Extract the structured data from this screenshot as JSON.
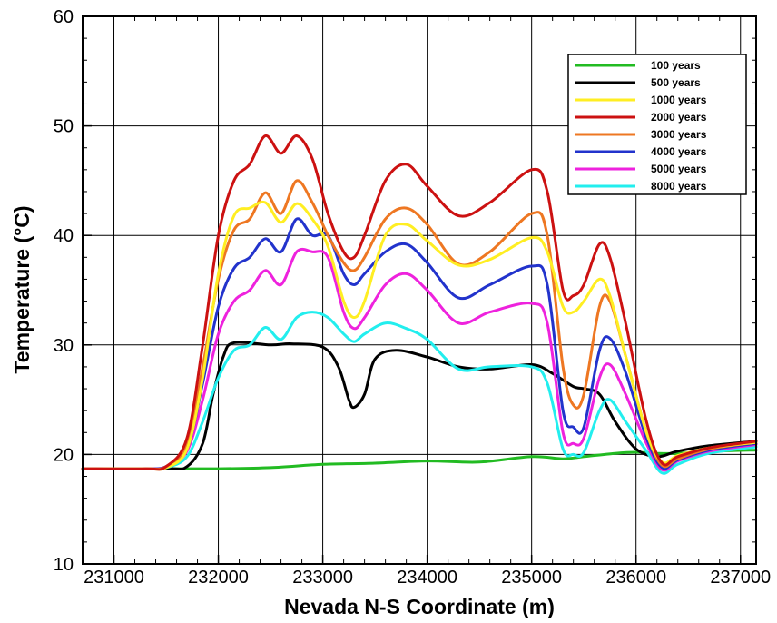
{
  "chart_data": {
    "type": "line",
    "xlabel": "Nevada N-S Coordinate (m)",
    "ylabel": "Temperature (°C)",
    "xlim": [
      230700,
      237150
    ],
    "ylim": [
      10,
      60
    ],
    "x_ticks": [
      231000,
      232000,
      233000,
      234000,
      235000,
      236000,
      237000
    ],
    "y_ticks": [
      10,
      20,
      30,
      40,
      50,
      60
    ],
    "grid": true,
    "legend_position": "top-right",
    "series": [
      {
        "name": "100 years",
        "color": "#22bb22",
        "x": [
          230700,
          231500,
          232000,
          232500,
          233000,
          233500,
          234000,
          234500,
          235000,
          235300,
          235500,
          235800,
          236000,
          236200,
          236400,
          236800,
          237150
        ],
        "y": [
          18.7,
          18.7,
          18.7,
          18.8,
          19.1,
          19.2,
          19.4,
          19.3,
          19.8,
          19.6,
          19.8,
          20.1,
          20.2,
          20.1,
          20.1,
          20.3,
          20.4
        ]
      },
      {
        "name": "500 years",
        "color": "#000000",
        "x": [
          230700,
          231500,
          231700,
          231850,
          231950,
          232050,
          232150,
          232500,
          232700,
          233000,
          233150,
          233250,
          233300,
          233400,
          233500,
          233700,
          234000,
          234300,
          234600,
          235000,
          235200,
          235400,
          235500,
          235650,
          235800,
          236000,
          236200,
          236400,
          236700,
          237150
        ],
        "y": [
          18.7,
          18.7,
          18.9,
          21.0,
          25.5,
          29.0,
          30.2,
          30.0,
          30.1,
          29.8,
          28.0,
          25.0,
          24.3,
          25.5,
          28.7,
          29.5,
          28.9,
          28.0,
          27.8,
          28.2,
          27.4,
          26.2,
          26.0,
          25.5,
          23.0,
          20.5,
          19.8,
          20.3,
          20.8,
          21.2
        ]
      },
      {
        "name": "1000 years",
        "color": "#ffee22",
        "x": [
          230700,
          231300,
          231500,
          231700,
          231850,
          232000,
          232150,
          232300,
          232450,
          232600,
          232750,
          232900,
          233050,
          233200,
          233300,
          233400,
          233600,
          233800,
          234000,
          234300,
          234600,
          235000,
          235150,
          235300,
          235400,
          235500,
          235650,
          235750,
          235900,
          236100,
          236250,
          236400,
          236700,
          237150
        ],
        "y": [
          18.7,
          18.7,
          18.8,
          20.5,
          27.0,
          36.5,
          41.8,
          42.5,
          43.0,
          41.2,
          42.9,
          41.5,
          39.0,
          34.0,
          32.5,
          34.0,
          40.0,
          41.0,
          39.5,
          37.3,
          37.8,
          39.8,
          38.5,
          33.5,
          33.0,
          34.0,
          36.0,
          34.5,
          29.0,
          22.0,
          19.3,
          19.9,
          20.6,
          21.1
        ]
      },
      {
        "name": "2000 years",
        "color": "#cc1111",
        "x": [
          230700,
          231300,
          231500,
          231700,
          231850,
          232000,
          232150,
          232300,
          232450,
          232600,
          232750,
          232900,
          233050,
          233200,
          233300,
          233400,
          233600,
          233800,
          234000,
          234300,
          234600,
          235000,
          235150,
          235300,
          235400,
          235500,
          235650,
          235750,
          235900,
          236100,
          236250,
          236400,
          236700,
          237150
        ],
        "y": [
          18.7,
          18.7,
          18.9,
          21.5,
          30.0,
          40.0,
          45.0,
          46.5,
          49.1,
          47.5,
          49.1,
          47.0,
          42.0,
          38.5,
          38.0,
          40.0,
          45.0,
          46.5,
          44.5,
          41.8,
          43.0,
          46.0,
          44.0,
          35.0,
          34.5,
          35.5,
          39.2,
          38.0,
          32.0,
          23.0,
          19.2,
          19.8,
          20.6,
          21.2
        ]
      },
      {
        "name": "3000 years",
        "color": "#ee7722",
        "x": [
          230700,
          231300,
          231500,
          231700,
          231850,
          232000,
          232150,
          232300,
          232450,
          232600,
          232750,
          232900,
          233050,
          233200,
          233300,
          233400,
          233600,
          233800,
          234000,
          234300,
          234600,
          235000,
          235150,
          235300,
          235400,
          235500,
          235650,
          235750,
          235900,
          236100,
          236250,
          236400,
          236700,
          237150
        ],
        "y": [
          18.7,
          18.7,
          18.9,
          21.0,
          28.0,
          36.0,
          40.5,
          41.5,
          43.9,
          42.0,
          45.0,
          43.0,
          40.0,
          37.5,
          36.8,
          38.0,
          41.5,
          42.5,
          41.0,
          37.4,
          38.5,
          42.0,
          40.0,
          28.0,
          24.5,
          25.5,
          33.5,
          34.0,
          29.0,
          22.0,
          19.0,
          19.6,
          20.5,
          21.1
        ]
      },
      {
        "name": "4000 years",
        "color": "#2233cc",
        "x": [
          230700,
          231300,
          231500,
          231700,
          231850,
          232000,
          232150,
          232300,
          232450,
          232600,
          232750,
          232900,
          233050,
          233200,
          233300,
          233400,
          233600,
          233800,
          234000,
          234300,
          234600,
          235000,
          235150,
          235300,
          235400,
          235500,
          235650,
          235750,
          235900,
          236100,
          236250,
          236400,
          236700,
          237150
        ],
        "y": [
          18.7,
          18.7,
          18.9,
          20.5,
          26.5,
          33.5,
          37.0,
          38.0,
          39.7,
          38.5,
          41.5,
          40.0,
          40.0,
          36.5,
          35.5,
          36.5,
          38.5,
          39.2,
          37.5,
          34.3,
          35.5,
          37.2,
          35.5,
          24.0,
          22.5,
          22.5,
          29.5,
          30.6,
          27.5,
          21.5,
          18.8,
          19.5,
          20.4,
          21.0
        ]
      },
      {
        "name": "5000 years",
        "color": "#ee22dd",
        "x": [
          230700,
          231300,
          231500,
          231700,
          231850,
          232000,
          232150,
          232300,
          232450,
          232600,
          232750,
          232900,
          233050,
          233200,
          233300,
          233400,
          233600,
          233800,
          234000,
          234300,
          234600,
          235000,
          235150,
          235300,
          235400,
          235500,
          235650,
          235750,
          235900,
          236100,
          236250,
          236400,
          236700,
          237150
        ],
        "y": [
          18.7,
          18.7,
          18.9,
          20.3,
          25.0,
          31.0,
          34.0,
          35.0,
          36.8,
          35.5,
          38.5,
          38.5,
          38.0,
          33.0,
          31.5,
          32.5,
          35.5,
          36.5,
          35.0,
          32.0,
          33.0,
          33.8,
          32.0,
          22.0,
          21.0,
          21.5,
          27.0,
          28.2,
          25.5,
          21.0,
          18.6,
          19.4,
          20.3,
          20.9
        ]
      },
      {
        "name": "8000 years",
        "color": "#22eeee",
        "x": [
          230700,
          231300,
          231500,
          231700,
          231850,
          232000,
          232150,
          232300,
          232450,
          232600,
          232750,
          232900,
          233050,
          233200,
          233300,
          233400,
          233600,
          233800,
          234000,
          234300,
          234600,
          235000,
          235150,
          235300,
          235400,
          235500,
          235650,
          235750,
          235900,
          236100,
          236250,
          236400,
          236700,
          237150
        ],
        "y": [
          18.7,
          18.7,
          18.8,
          19.8,
          23.0,
          27.0,
          29.5,
          30.0,
          31.6,
          30.5,
          32.5,
          33.0,
          32.5,
          31.0,
          30.3,
          31.0,
          32.0,
          31.5,
          30.5,
          27.8,
          28.0,
          28.0,
          26.5,
          20.5,
          20.0,
          20.2,
          24.0,
          25.0,
          23.0,
          20.3,
          18.3,
          19.1,
          20.1,
          20.7
        ]
      }
    ]
  }
}
